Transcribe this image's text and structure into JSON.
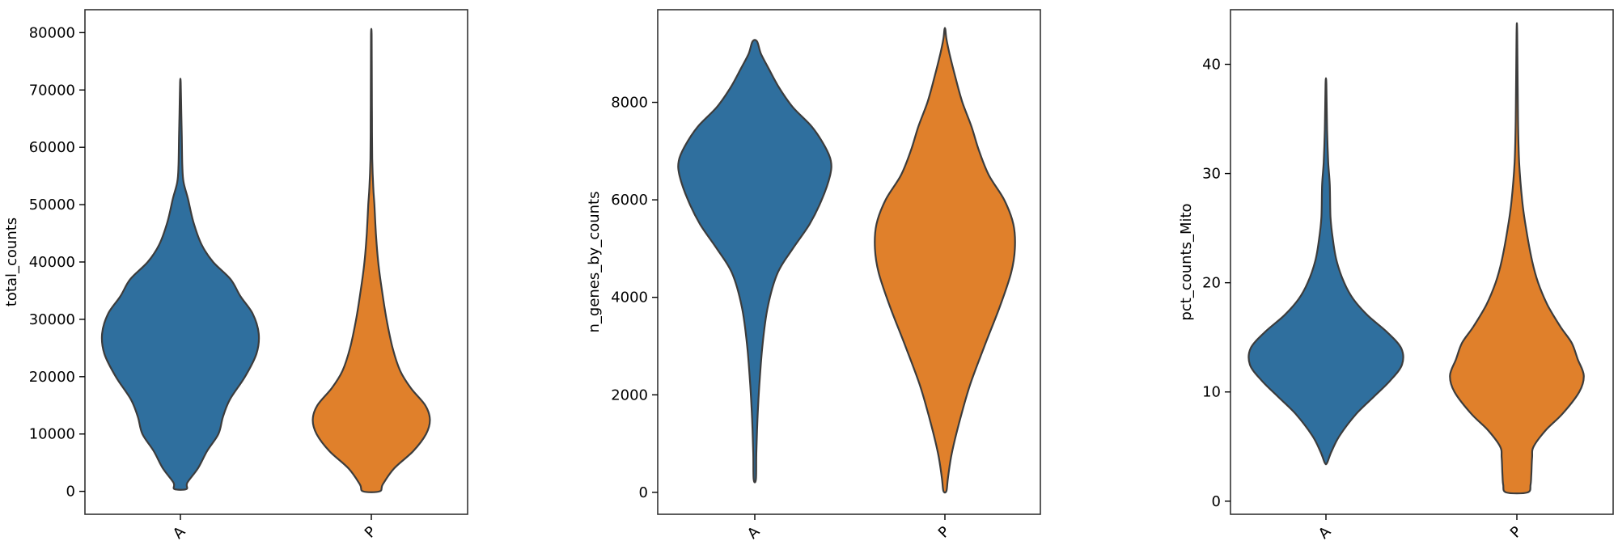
{
  "chart_data": [
    {
      "type": "violin",
      "categories": [
        "A",
        "P"
      ],
      "ylabel": "total_counts",
      "ylim": [
        -4000,
        84000
      ],
      "yticks": [
        "0",
        "10000",
        "20000",
        "30000",
        "40000",
        "50000",
        "60000",
        "70000",
        "80000"
      ],
      "yticks_values": [
        0,
        10000,
        20000,
        30000,
        40000,
        50000,
        60000,
        70000,
        80000
      ],
      "colors": [
        "#2f6f9e",
        "#e0802b"
      ],
      "violins": [
        {
          "category": "A",
          "color": "#2f6f9e",
          "range": [
            400,
            71300
          ],
          "profile": [
            [
              400,
              0.08
            ],
            [
              1500,
              0.09
            ],
            [
              4000,
              0.23
            ],
            [
              7000,
              0.35
            ],
            [
              10000,
              0.5
            ],
            [
              13000,
              0.56
            ],
            [
              16000,
              0.65
            ],
            [
              20000,
              0.85
            ],
            [
              24000,
              1.0
            ],
            [
              27500,
              1.03
            ],
            [
              31000,
              0.95
            ],
            [
              34000,
              0.79
            ],
            [
              37000,
              0.66
            ],
            [
              40000,
              0.43
            ],
            [
              43000,
              0.28
            ],
            [
              47000,
              0.17
            ],
            [
              51000,
              0.1
            ],
            [
              54000,
              0.04
            ],
            [
              57000,
              0.025
            ],
            [
              62000,
              0.018
            ],
            [
              66000,
              0.012
            ],
            [
              71300,
              0.004
            ]
          ]
        },
        {
          "category": "P",
          "color": "#e0802b",
          "range": [
            0,
            79700
          ],
          "profile": [
            [
              0,
              0.11
            ],
            [
              1200,
              0.15
            ],
            [
              4000,
              0.3
            ],
            [
              7000,
              0.55
            ],
            [
              10000,
              0.72
            ],
            [
              12500,
              0.77
            ],
            [
              15000,
              0.71
            ],
            [
              18000,
              0.52
            ],
            [
              21000,
              0.38
            ],
            [
              25000,
              0.28
            ],
            [
              30000,
              0.2
            ],
            [
              35000,
              0.14
            ],
            [
              40000,
              0.09
            ],
            [
              45000,
              0.06
            ],
            [
              50000,
              0.04
            ],
            [
              53000,
              0.025
            ],
            [
              58000,
              0.012
            ],
            [
              65000,
              0.008
            ],
            [
              72000,
              0.006
            ],
            [
              79700,
              0.004
            ]
          ]
        }
      ]
    },
    {
      "type": "violin",
      "categories": [
        "A",
        "P"
      ],
      "ylabel": "n_genes_by_counts",
      "ylim": [
        -450,
        9900
      ],
      "yticks": [
        "0",
        "2000",
        "4000",
        "6000",
        "8000"
      ],
      "yticks_values": [
        0,
        2000,
        4000,
        6000,
        8000
      ],
      "colors": [
        "#2f6f9e",
        "#e0802b"
      ],
      "violins": [
        {
          "category": "A",
          "color": "#2f6f9e",
          "range": [
            270,
            9250
          ],
          "profile": [
            [
              270,
              0.015
            ],
            [
              800,
              0.02
            ],
            [
              1500,
              0.035
            ],
            [
              2200,
              0.06
            ],
            [
              3000,
              0.1
            ],
            [
              3800,
              0.17
            ],
            [
              4500,
              0.3
            ],
            [
              5000,
              0.5
            ],
            [
              5500,
              0.72
            ],
            [
              6000,
              0.88
            ],
            [
              6500,
              0.99
            ],
            [
              6800,
              1.0
            ],
            [
              7100,
              0.92
            ],
            [
              7500,
              0.75
            ],
            [
              7900,
              0.5
            ],
            [
              8300,
              0.32
            ],
            [
              8700,
              0.18
            ],
            [
              9000,
              0.08
            ],
            [
              9250,
              0.03
            ]
          ]
        },
        {
          "category": "P",
          "color": "#e0802b",
          "range": [
            30,
            9500
          ],
          "profile": [
            [
              30,
              0.02
            ],
            [
              300,
              0.04
            ],
            [
              800,
              0.09
            ],
            [
              1500,
              0.2
            ],
            [
              2200,
              0.33
            ],
            [
              3000,
              0.52
            ],
            [
              3800,
              0.72
            ],
            [
              4500,
              0.87
            ],
            [
              5000,
              0.92
            ],
            [
              5500,
              0.9
            ],
            [
              6000,
              0.78
            ],
            [
              6500,
              0.58
            ],
            [
              7000,
              0.45
            ],
            [
              7500,
              0.35
            ],
            [
              8000,
              0.23
            ],
            [
              8500,
              0.14
            ],
            [
              9000,
              0.06
            ],
            [
              9300,
              0.02
            ],
            [
              9500,
              0.005
            ]
          ]
        }
      ]
    },
    {
      "type": "violin",
      "categories": [
        "A",
        "P"
      ],
      "ylabel": "pct_counts_Mito",
      "ylim": [
        -1.2,
        45
      ],
      "yticks": [
        "0",
        "10",
        "20",
        "30",
        "40"
      ],
      "yticks_values": [
        0,
        10,
        20,
        30,
        40
      ],
      "colors": [
        "#2f6f9e",
        "#e0802b"
      ],
      "violins": [
        {
          "category": "A",
          "color": "#2f6f9e",
          "range": [
            3.5,
            38.2
          ],
          "profile": [
            [
              3.5,
              0.015
            ],
            [
              4.5,
              0.07
            ],
            [
              6,
              0.18
            ],
            [
              8,
              0.4
            ],
            [
              9.5,
              0.62
            ],
            [
              11,
              0.84
            ],
            [
              12.5,
              1.0
            ],
            [
              14,
              0.99
            ],
            [
              15.5,
              0.8
            ],
            [
              17,
              0.55
            ],
            [
              18.5,
              0.36
            ],
            [
              20,
              0.24
            ],
            [
              22,
              0.14
            ],
            [
              24,
              0.09
            ],
            [
              26,
              0.06
            ],
            [
              29,
              0.05
            ],
            [
              31,
              0.03
            ],
            [
              34,
              0.015
            ],
            [
              38.2,
              0.005
            ]
          ]
        },
        {
          "category": "P",
          "color": "#e0802b",
          "range": [
            0.8,
            42.8
          ],
          "profile": [
            [
              0.8,
              0.14
            ],
            [
              1.5,
              0.18
            ],
            [
              2.5,
              0.19
            ],
            [
              4,
              0.2
            ],
            [
              5,
              0.22
            ],
            [
              6.5,
              0.38
            ],
            [
              8,
              0.6
            ],
            [
              10,
              0.82
            ],
            [
              11.5,
              0.88
            ],
            [
              13,
              0.8
            ],
            [
              14.5,
              0.72
            ],
            [
              16,
              0.57
            ],
            [
              18,
              0.4
            ],
            [
              20,
              0.28
            ],
            [
              22,
              0.2
            ],
            [
              25,
              0.12
            ],
            [
              27.5,
              0.07
            ],
            [
              31,
              0.03
            ],
            [
              35,
              0.015
            ],
            [
              42.8,
              0.004
            ]
          ]
        }
      ]
    }
  ]
}
